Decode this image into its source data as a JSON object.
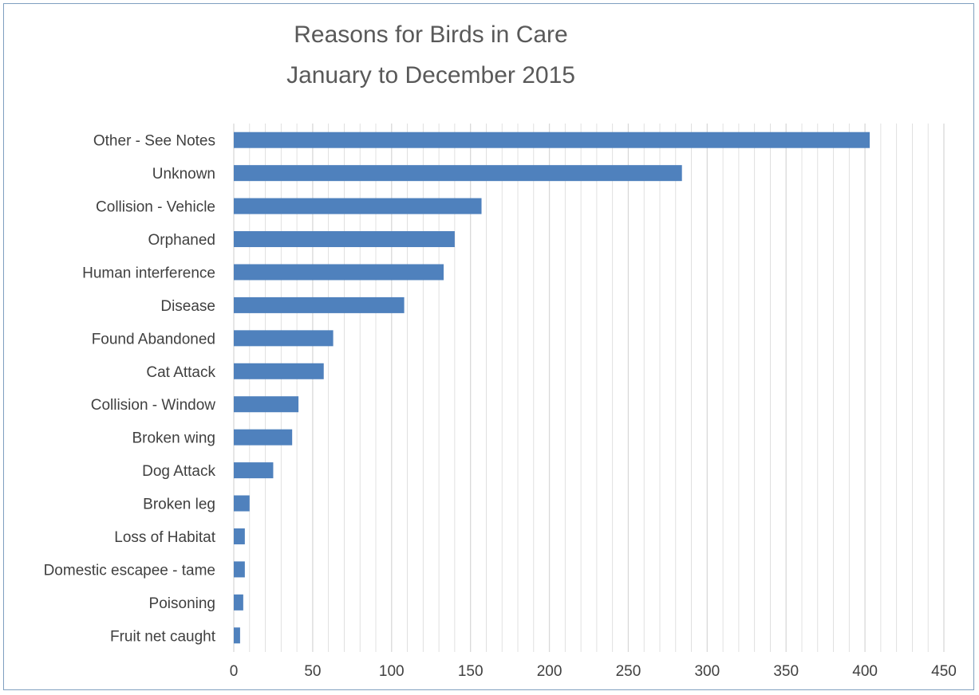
{
  "chart_data": {
    "type": "bar",
    "orientation": "horizontal",
    "title": "Reasons for Birds in Care",
    "subtitle": "January to December 2015",
    "categories": [
      "Other - See Notes",
      "Unknown",
      "Collision - Vehicle",
      "Orphaned",
      "Human interference",
      "Disease",
      "Found Abandoned",
      "Cat Attack",
      "Collision - Window",
      "Broken wing",
      "Dog Attack",
      "Broken leg",
      "Loss of Habitat",
      "Domestic escapee - tame",
      "Poisoning",
      "Fruit net caught"
    ],
    "values": [
      403,
      284,
      157,
      140,
      133,
      108,
      63,
      57,
      41,
      37,
      25,
      10,
      7,
      7,
      6,
      4
    ],
    "xlim": [
      0,
      450
    ],
    "x_ticks": [
      "0",
      "50",
      "100",
      "150",
      "200",
      "250",
      "300",
      "350",
      "400",
      "450"
    ],
    "grid": true,
    "legend": "none",
    "bar_color": "#4f81bd",
    "grid_color": "#d9d9d9"
  }
}
